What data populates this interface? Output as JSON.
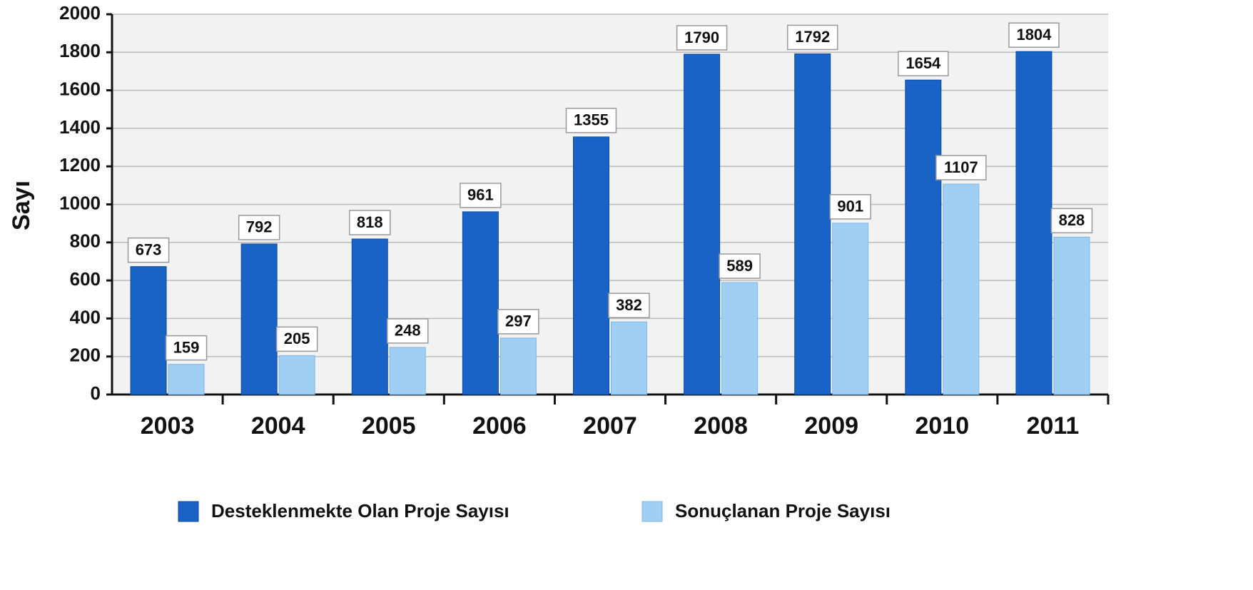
{
  "chart_data": {
    "type": "bar",
    "y_label": "Sayı",
    "categories": [
      "2003",
      "2004",
      "2005",
      "2006",
      "2007",
      "2008",
      "2009",
      "2010",
      "2011"
    ],
    "series": [
      {
        "name": "Desteklenmekte Olan Proje Sayısı",
        "color": "#1a63c6",
        "values": [
          673,
          792,
          818,
          961,
          1355,
          1790,
          1792,
          1654,
          1804
        ]
      },
      {
        "name": "Sonuçlanan Proje Sayısı",
        "color": "#9fcff3",
        "values": [
          159,
          205,
          248,
          297,
          382,
          589,
          901,
          1107,
          828
        ]
      }
    ],
    "ylim": [
      0,
      2000
    ],
    "yticks": [
      0,
      200,
      400,
      600,
      800,
      1000,
      1200,
      1400,
      1600,
      1800,
      2000
    ],
    "grid": true
  }
}
